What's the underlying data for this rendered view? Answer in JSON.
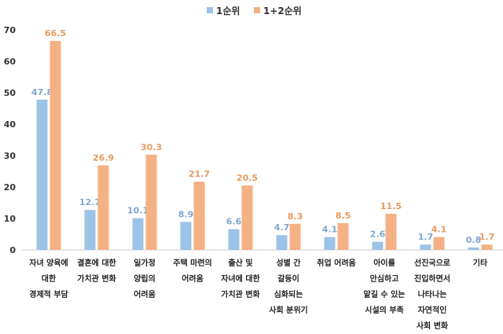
{
  "chart_data": {
    "type": "bar",
    "title": "",
    "xlabel": "",
    "ylabel": "",
    "ylim": [
      0,
      70
    ],
    "yticks": [
      0,
      10,
      20,
      30,
      40,
      50,
      60,
      70
    ],
    "grid": false,
    "legend_position": "top",
    "categories": [
      [
        "자녀 양육에",
        "대한",
        "경제적 부담"
      ],
      [
        "결혼에 대한",
        "가치관 변화"
      ],
      [
        "일가정",
        "양립의",
        "어려움"
      ],
      [
        "주택 마련의",
        "어려움"
      ],
      [
        "출산 및",
        "자녀에 대한",
        "가치관 변화"
      ],
      [
        "성별 간",
        "갈등이",
        "심화되는",
        "사회 분위기"
      ],
      [
        "취업 어려움"
      ],
      [
        "아이를",
        "안심하고",
        "맡길 수 있는",
        "시설의 부족"
      ],
      [
        "선진국으로",
        "진입하면서",
        "나타나는",
        "자연적인",
        "사회 변화"
      ],
      [
        "기타"
      ]
    ],
    "series": [
      {
        "name": "1순위",
        "color": "#9dc3e6",
        "label_color": "#7fa7cf",
        "values": [
          47.8,
          12.7,
          10.1,
          8.9,
          6.6,
          4.7,
          4.1,
          2.6,
          1.7,
          0.8
        ]
      },
      {
        "name": "1+2순위",
        "color": "#f4b183",
        "label_color": "#e69a5f",
        "values": [
          66.5,
          26.9,
          30.3,
          21.7,
          20.5,
          8.3,
          8.5,
          11.5,
          4.1,
          1.7
        ]
      }
    ]
  }
}
